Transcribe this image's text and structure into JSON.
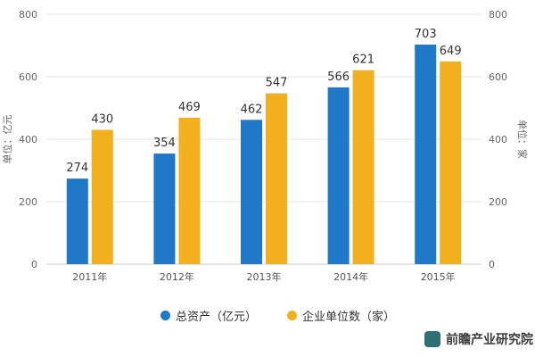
{
  "chart_data": {
    "type": "bar",
    "categories": [
      "2011年",
      "2012年",
      "2013年",
      "2014年",
      "2015年"
    ],
    "series": [
      {
        "name": "总资产（亿元）",
        "values": [
          274,
          354,
          462,
          566,
          703
        ],
        "color": "#1f78c8",
        "axis": "left"
      },
      {
        "name": "企业单位数（家）",
        "values": [
          430,
          469,
          547,
          621,
          649
        ],
        "color": "#f2b01e",
        "axis": "right"
      }
    ],
    "y_left_label": "单位：亿元",
    "y_right_label": "单位：家",
    "ylim": [
      0,
      800
    ],
    "yticks": [
      0,
      200,
      400,
      600,
      800
    ],
    "grid": true,
    "legend_position": "bottom"
  },
  "watermark": "前瞻产业研究院"
}
